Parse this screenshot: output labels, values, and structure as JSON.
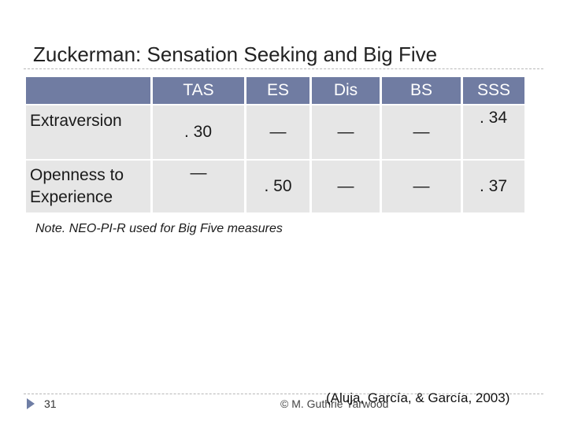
{
  "slide": {
    "title": "Zuckerman: Sensation Seeking and Big Five",
    "note": "Note. NEO-PI-R used for Big Five measures",
    "page_number": "31",
    "copyright": "© M. Guthrie Yarwood",
    "citation": "(Aluja, García, & García, 2003)"
  },
  "table": {
    "headers": [
      "",
      "TAS",
      "ES",
      "Dis",
      "BS",
      "SSS"
    ],
    "rows": [
      {
        "label": "Extraversion",
        "cells": [
          ". 30",
          "—",
          "—",
          "—",
          ". 34"
        ]
      },
      {
        "label": "Openness to Experience",
        "cells": [
          "—",
          ". 50",
          "—",
          "—",
          ". 37"
        ]
      }
    ]
  },
  "colors": {
    "header_bg": "#707ca2",
    "row_bg": "#e6e6e6",
    "marker": "#6f7ea5"
  }
}
